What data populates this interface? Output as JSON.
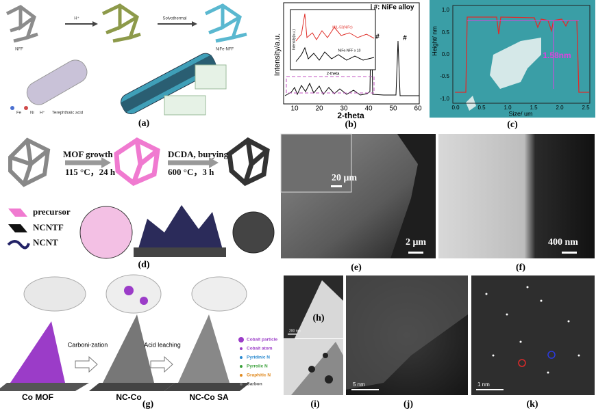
{
  "a": {
    "label": "(a)",
    "start": "NFF",
    "acid": "H⁺",
    "step": "Solvothermal",
    "product": "NiFe-NFF",
    "legend": [
      "Fe",
      "Ni",
      "H⁺",
      "Terephthalic acid"
    ]
  },
  "b": {
    "label": "(b)",
    "title": "#: NiFe alloy",
    "y_label": "Intensity/a.u.",
    "x_label": "2-theta",
    "x_ticks": [
      "10",
      "20",
      "30",
      "40",
      "50",
      "60"
    ],
    "peak_marks": [
      "#",
      "#"
    ],
    "inset": {
      "y_label": "Intensity(a.u.)",
      "x_label": "2-theta",
      "series": [
        "MIL-53(NiFe)",
        "NiFe-NFF x 10"
      ]
    }
  },
  "c": {
    "label": "(c)",
    "y_label": "Height/ nm",
    "x_label": "Size/ um",
    "step": "1.58nm",
    "y_ticks": [
      "1.0",
      "0.5",
      "0.0",
      "-0.5",
      "-1.0"
    ],
    "x_ticks": [
      "0.0",
      "0.5",
      "1.0",
      "1.5",
      "2.0",
      "2.5"
    ]
  },
  "d": {
    "label": "(d)",
    "step1": "MOF growth",
    "cond1": "115 °C，24 h",
    "step2": "DCDA, burying",
    "cond2": "600 °C，3 h",
    "legend": [
      "precursor",
      "NCNTF",
      "NCNT"
    ]
  },
  "e": {
    "label": "(e)",
    "inset_scale": "20 μm",
    "scale": "2 μm"
  },
  "f": {
    "label": "(f)",
    "scale": "400 nm"
  },
  "g": {
    "label": "(g)",
    "stages": [
      "Co MOF",
      "NC-Co",
      "NC-Co SA"
    ],
    "step1": "Carboni-zation",
    "step2": "Acid leaching",
    "legend": [
      "Cobalt particle",
      "Cobalt atom",
      "Pyridinic N",
      "Pyrrolic N",
      "Graphitic N",
      "Carbon"
    ]
  },
  "h": {
    "label": "(h)",
    "scale": "200 nm"
  },
  "i": {
    "label": "(i)"
  },
  "j": {
    "label": "(j)",
    "scale": "5 nm"
  },
  "k": {
    "label": "(k)",
    "scale": "1 nm"
  }
}
